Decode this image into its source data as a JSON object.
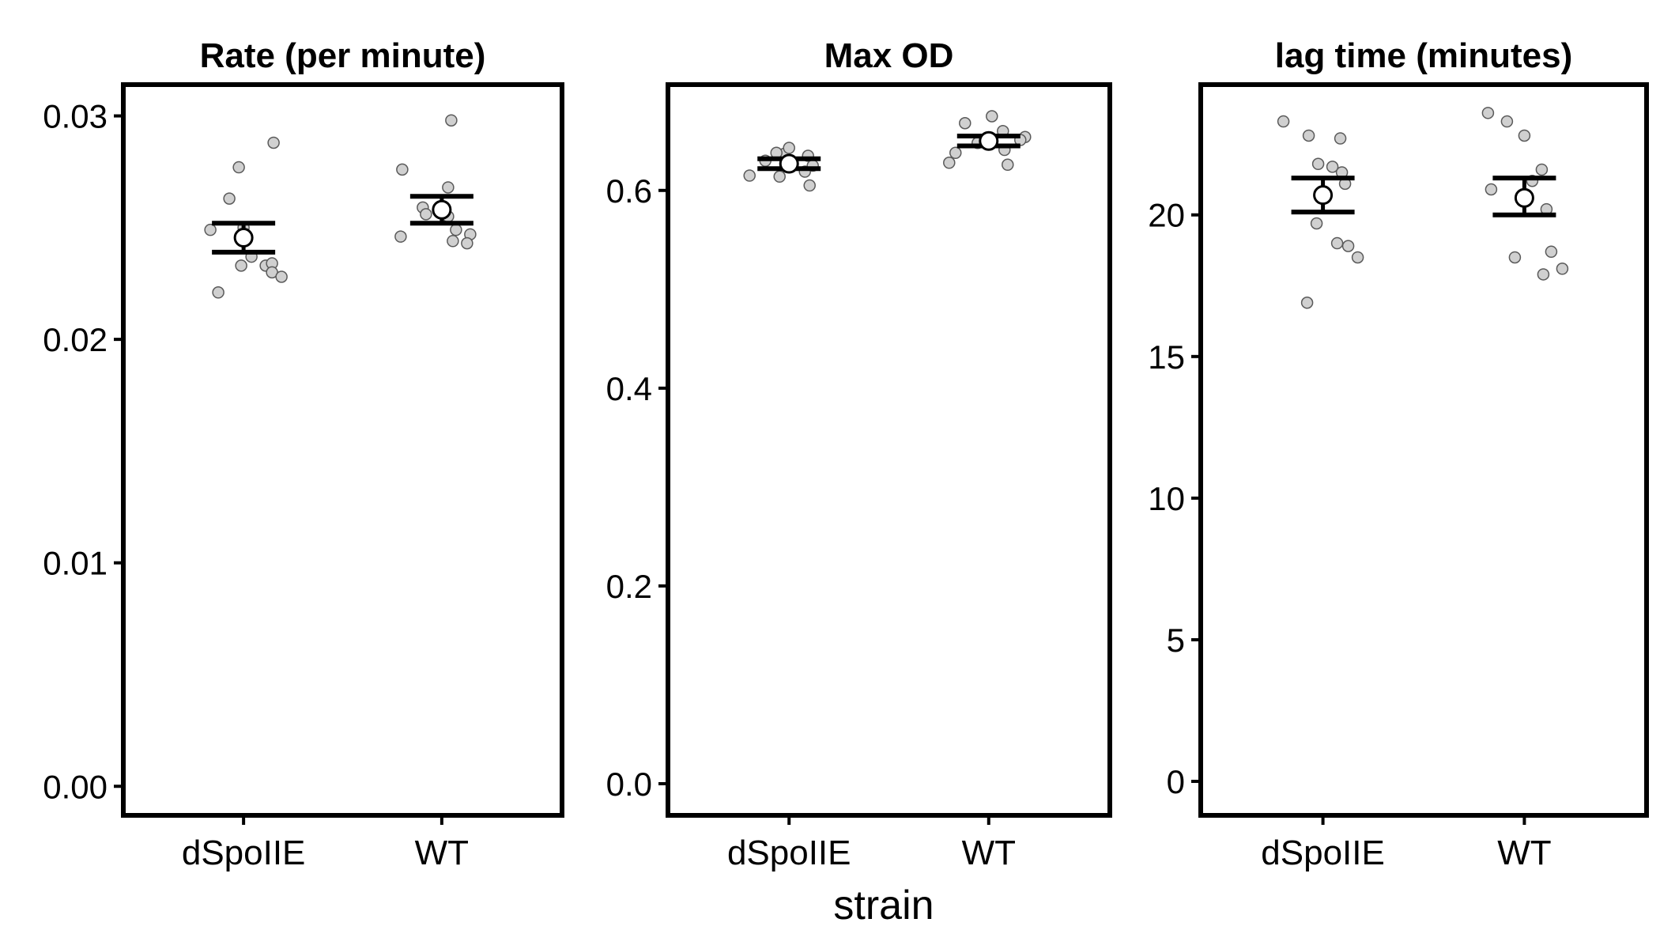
{
  "figure": {
    "xlabel": "strain"
  },
  "chart_data": [
    {
      "type": "scatter",
      "title": "Rate (per minute)",
      "xlabel": "strain",
      "ylabel": "",
      "categories": [
        "dSpoIIE",
        "WT"
      ],
      "ylim": [
        -0.0013,
        0.0314
      ],
      "yticks": [
        "0.00",
        "0.01",
        "0.02",
        "0.03"
      ],
      "ytick_values": [
        0.0,
        0.01,
        0.02,
        0.03
      ],
      "summary": [
        {
          "category": "dSpoIIE",
          "mean": 0.02455,
          "lower": 0.0239,
          "upper": 0.0252
        },
        {
          "category": "WT",
          "mean": 0.0258,
          "lower": 0.0252,
          "upper": 0.0264
        }
      ],
      "points": [
        {
          "category": "dSpoIIE",
          "values": [
            0.0249,
            0.0263,
            0.0277,
            0.0288,
            0.025,
            0.0237,
            0.0233,
            0.0233,
            0.0234,
            0.023,
            0.0228,
            0.0221
          ]
        },
        {
          "category": "WT",
          "values": [
            0.0276,
            0.0298,
            0.0268,
            0.0259,
            0.0255,
            0.0256,
            0.0247,
            0.0246,
            0.0249,
            0.0243,
            0.0244
          ]
        }
      ]
    },
    {
      "type": "scatter",
      "title": "Max OD",
      "xlabel": "strain",
      "ylabel": "",
      "categories": [
        "dSpoIIE",
        "WT"
      ],
      "ylim": [
        -0.032,
        0.707
      ],
      "yticks": [
        "0.0",
        "0.2",
        "0.4",
        "0.6"
      ],
      "ytick_values": [
        0.0,
        0.2,
        0.4,
        0.6
      ],
      "summary": [
        {
          "category": "dSpoIIE",
          "mean": 0.627,
          "lower": 0.622,
          "upper": 0.632
        },
        {
          "category": "WT",
          "mean": 0.65,
          "lower": 0.645,
          "upper": 0.655
        }
      ],
      "points": [
        {
          "category": "dSpoIIE",
          "values": [
            0.615,
            0.63,
            0.637,
            0.635,
            0.638,
            0.643,
            0.625,
            0.619,
            0.605,
            0.614
          ]
        },
        {
          "category": "WT",
          "values": [
            0.628,
            0.641,
            0.668,
            0.648,
            0.66,
            0.675,
            0.654,
            0.651,
            0.626,
            0.638
          ]
        }
      ]
    },
    {
      "type": "scatter",
      "title": "lag time (minutes)",
      "xlabel": "strain",
      "ylabel": "",
      "categories": [
        "dSpoIIE",
        "WT"
      ],
      "ylim": [
        -1.2,
        24.6
      ],
      "yticks": [
        "0",
        "5",
        "10",
        "15",
        "20"
      ],
      "ytick_values": [
        0,
        5,
        10,
        15,
        20
      ],
      "summary": [
        {
          "category": "dSpoIIE",
          "mean": 20.7,
          "lower": 20.1,
          "upper": 21.3
        },
        {
          "category": "WT",
          "mean": 20.6,
          "lower": 20.0,
          "upper": 21.3
        }
      ],
      "points": [
        {
          "category": "dSpoIIE",
          "values": [
            23.3,
            22.8,
            22.7,
            21.8,
            21.7,
            21.5,
            21.1,
            19.7,
            19.0,
            18.9,
            18.5,
            16.9
          ]
        },
        {
          "category": "WT",
          "values": [
            23.6,
            23.3,
            22.8,
            21.6,
            21.2,
            20.9,
            20.2,
            18.7,
            18.5,
            18.1,
            17.9
          ]
        }
      ]
    }
  ]
}
